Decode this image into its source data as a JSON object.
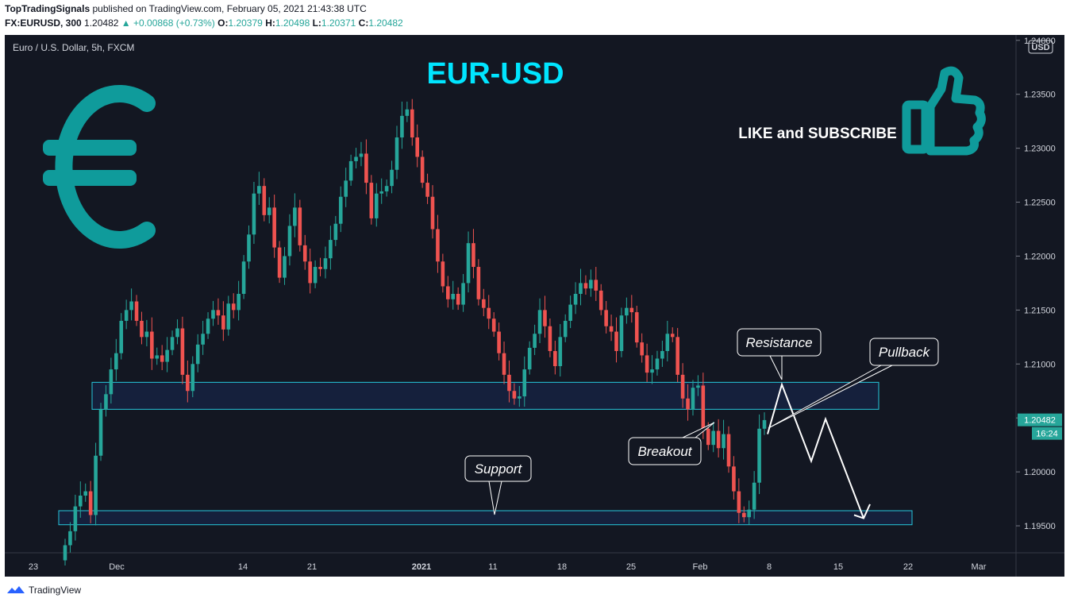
{
  "header": {
    "publisher": "TopTradingSignals",
    "published_text": "published on TradingView.com, February 05, 2021 21:43:38 UTC",
    "symbol": "FX:EURUSD, 300",
    "last": "1.20482",
    "change": "+0.00868 (+0.73%)",
    "open_label": "O:",
    "open": "1.20379",
    "high_label": "H:",
    "high": "1.20498",
    "low_label": "L:",
    "low": "1.20371",
    "close_label": "C:",
    "close": "1.20482"
  },
  "footer": {
    "brand": "TradingView"
  },
  "colors": {
    "bull": "#26a69a",
    "bear": "#ef5350",
    "teal": "#0f9b9b",
    "title": "#00e5ff",
    "bg": "#131722"
  },
  "chart_data": {
    "type": "candlestick",
    "pane_label": "Euro / U.S. Dollar, 5h, FXCM",
    "title": "EUR-USD",
    "currency": "USD",
    "last_price_label": "1.20482",
    "countdown_label": "16:24",
    "promo_text": "LIKE and SUBSCRIBE",
    "y_ticks": [
      "1.24000",
      "1.23500",
      "1.23000",
      "1.22500",
      "1.22000",
      "1.21500",
      "1.21000",
      "1.20500",
      "1.20000",
      "1.19500"
    ],
    "x_ticks": [
      "23",
      "Dec",
      "14",
      "21",
      "2021",
      "11",
      "18",
      "25",
      "Feb",
      "8",
      "15",
      "22",
      "Mar"
    ],
    "ylim": [
      1.1925,
      1.2405
    ],
    "zones": [
      {
        "name": "resistance-zone",
        "from": 1.2058,
        "to": 1.2083
      },
      {
        "name": "support-zone",
        "from": 1.1951,
        "to": 1.1964
      }
    ],
    "callouts": [
      "Resistance",
      "Pullback",
      "Breakout",
      "Support"
    ],
    "path_points": [
      {
        "x": "1.2049",
        "y": 1.2035
      },
      {
        "y": 1.2081
      },
      {
        "y": 1.201
      },
      {
        "y": 1.2049
      },
      {
        "y": 1.1957
      }
    ],
    "closes": [
      1.1932,
      1.1945,
      1.1968,
      1.1978,
      1.1982,
      1.196,
      1.2015,
      1.2058,
      1.2072,
      1.2095,
      1.211,
      1.214,
      1.215,
      1.2158,
      1.214,
      1.2125,
      1.213,
      1.2105,
      1.2108,
      1.2102,
      1.2113,
      1.2125,
      1.2133,
      1.209,
      1.2075,
      1.21,
      1.2118,
      1.2128,
      1.2142,
      1.215,
      1.2145,
      1.2132,
      1.2156,
      1.215,
      1.2165,
      1.2195,
      1.222,
      1.2258,
      1.2265,
      1.2238,
      1.2245,
      1.2208,
      1.218,
      1.22,
      1.2228,
      1.2245,
      1.221,
      1.2195,
      1.2175,
      1.219,
      1.2188,
      1.2198,
      1.2215,
      1.223,
      1.2255,
      1.227,
      1.2288,
      1.2292,
      1.2295,
      1.2268,
      1.2235,
      1.2258,
      1.226,
      1.2265,
      1.228,
      1.231,
      1.233,
      1.2336,
      1.231,
      1.2292,
      1.2268,
      1.2255,
      1.2225,
      1.2195,
      1.2172,
      1.216,
      1.2165,
      1.2155,
      1.2175,
      1.2212,
      1.219,
      1.216,
      1.2152,
      1.2142,
      1.213,
      1.211,
      1.209,
      1.2075,
      1.2068,
      1.207,
      1.2095,
      1.2115,
      1.2128,
      1.215,
      1.2135,
      1.2112,
      1.2098,
      1.2125,
      1.214,
      1.2155,
      1.2165,
      1.2175,
      1.217,
      1.2178,
      1.2168,
      1.215,
      1.2135,
      1.213,
      1.2112,
      1.2145,
      1.2152,
      1.2148,
      1.212,
      1.2108,
      1.2092,
      1.2095,
      1.2105,
      1.2112,
      1.2128,
      1.2125,
      1.209,
      1.2068,
      1.2058,
      1.2078,
      1.208,
      1.204,
      1.2025,
      1.2038,
      1.2022,
      1.2035,
      1.2005,
      1.1982,
      1.1962,
      1.1958,
      1.1965,
      1.199,
      1.204,
      1.2048
    ]
  }
}
